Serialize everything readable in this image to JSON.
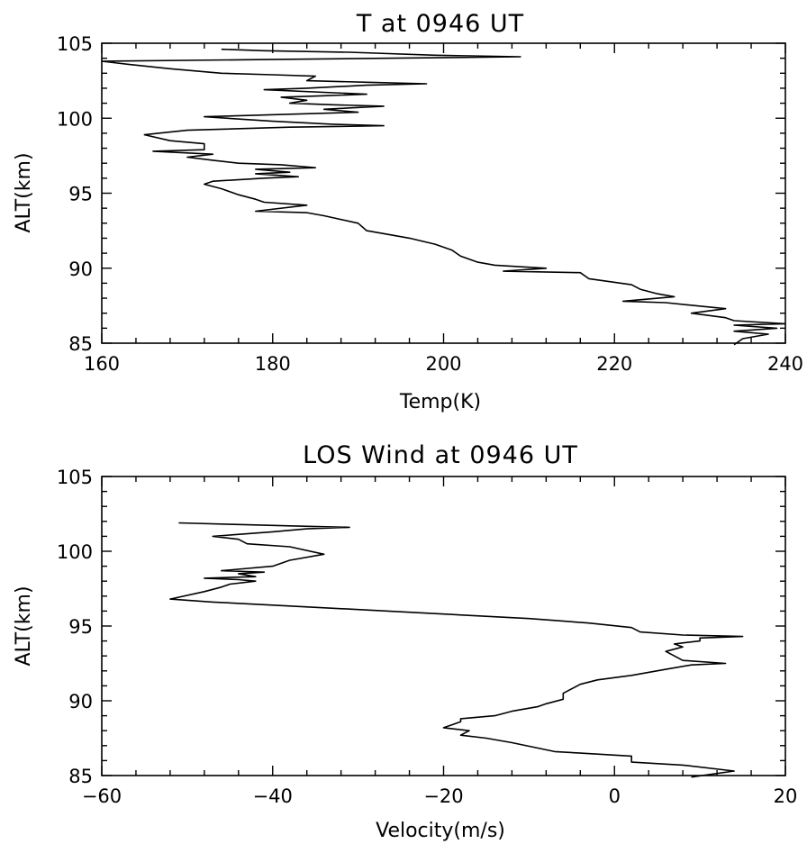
{
  "chart_data": [
    {
      "type": "line",
      "title": "T at 0946 UT",
      "xlabel": "Temp(K)",
      "ylabel": "ALT(km)",
      "xlim": [
        160,
        240
      ],
      "ylim": [
        85,
        105
      ],
      "x_ticks": [
        "160",
        "180",
        "200",
        "220",
        "240"
      ],
      "y_ticks": [
        "85",
        "90",
        "95",
        "100",
        "105"
      ],
      "grid": false,
      "series": [
        {
          "points": [
            [
              234,
              84.9
            ],
            [
              235,
              85.3
            ],
            [
              238,
              85.6
            ],
            [
              234,
              85.8
            ],
            [
              239,
              86.0
            ],
            [
              234,
              86.2
            ],
            [
              240,
              86.3
            ],
            [
              234,
              86.5
            ],
            [
              233,
              86.7
            ],
            [
              229,
              87.0
            ],
            [
              233,
              87.3
            ],
            [
              226,
              87.7
            ],
            [
              221,
              87.8
            ],
            [
              227,
              88.1
            ],
            [
              225,
              88.3
            ],
            [
              223,
              88.6
            ],
            [
              222,
              88.9
            ],
            [
              217,
              89.3
            ],
            [
              216,
              89.7
            ],
            [
              207,
              89.8
            ],
            [
              212,
              90.0
            ],
            [
              206,
              90.2
            ],
            [
              204,
              90.4
            ],
            [
              202,
              90.8
            ],
            [
              201,
              91.2
            ],
            [
              199,
              91.6
            ],
            [
              196,
              92.0
            ],
            [
              194,
              92.2
            ],
            [
              191,
              92.5
            ],
            [
              190,
              93.0
            ],
            [
              186,
              93.5
            ],
            [
              184,
              93.7
            ],
            [
              178,
              93.8
            ],
            [
              184,
              94.2
            ],
            [
              179,
              94.4
            ],
            [
              178,
              94.6
            ],
            [
              176,
              94.9
            ],
            [
              174,
              95.3
            ],
            [
              172,
              95.6
            ],
            [
              173,
              95.8
            ],
            [
              179,
              96.0
            ],
            [
              183,
              96.1
            ],
            [
              178,
              96.3
            ],
            [
              182,
              96.4
            ],
            [
              178,
              96.6
            ],
            [
              185,
              96.7
            ],
            [
              181,
              96.9
            ],
            [
              176,
              97.0
            ],
            [
              173,
              97.2
            ],
            [
              170,
              97.4
            ],
            [
              173,
              97.6
            ],
            [
              166,
              97.8
            ],
            [
              172,
              97.9
            ],
            [
              172,
              98.3
            ],
            [
              168,
              98.5
            ],
            [
              165,
              98.9
            ],
            [
              170,
              99.2
            ],
            [
              182,
              99.4
            ],
            [
              193,
              99.5
            ],
            [
              187,
              99.6
            ],
            [
              180,
              99.8
            ],
            [
              172,
              100.1
            ],
            [
              190,
              100.4
            ],
            [
              186,
              100.6
            ],
            [
              193,
              100.8
            ],
            [
              187,
              100.9
            ],
            [
              182,
              101.0
            ],
            [
              184,
              101.2
            ],
            [
              181,
              101.4
            ],
            [
              186,
              101.5
            ],
            [
              191,
              101.6
            ],
            [
              179,
              101.9
            ],
            [
              184,
              102.0
            ],
            [
              191,
              102.2
            ],
            [
              198,
              102.3
            ],
            [
              191,
              102.4
            ],
            [
              184,
              102.5
            ],
            [
              185,
              102.8
            ],
            [
              180,
              102.9
            ],
            [
              174,
              103.0
            ],
            [
              168,
              103.3
            ],
            [
              163,
              103.6
            ],
            [
              160,
              103.8
            ],
            [
              177,
              103.9
            ],
            [
              193,
              104.0
            ],
            [
              209,
              104.1
            ],
            [
              199,
              104.2
            ],
            [
              189,
              104.4
            ],
            [
              179,
              104.5
            ],
            [
              174,
              104.6
            ]
          ]
        }
      ]
    },
    {
      "type": "line",
      "title": "LOS Wind at 0946  UT",
      "xlabel": "Velocity(m/s)",
      "ylabel": "ALT(km)",
      "xlim": [
        -60,
        20
      ],
      "ylim": [
        85,
        105
      ],
      "x_ticks": [
        "−60",
        "−40",
        "−20",
        "0",
        "20"
      ],
      "y_ticks": [
        "85",
        "90",
        "95",
        "100",
        "105"
      ],
      "grid": false,
      "series": [
        {
          "points": [
            [
              9,
              84.9
            ],
            [
              14,
              85.3
            ],
            [
              8,
              85.7
            ],
            [
              2,
              85.9
            ],
            [
              2,
              86.3
            ],
            [
              -4,
              86.5
            ],
            [
              -7,
              86.6
            ],
            [
              -12,
              87.2
            ],
            [
              -15,
              87.5
            ],
            [
              -18,
              87.7
            ],
            [
              -17,
              88.0
            ],
            [
              -20,
              88.2
            ],
            [
              -19,
              88.4
            ],
            [
              -18,
              88.6
            ],
            [
              -18,
              88.8
            ],
            [
              -14,
              89.0
            ],
            [
              -12,
              89.3
            ],
            [
              -9,
              89.6
            ],
            [
              -8,
              89.8
            ],
            [
              -6,
              90.1
            ],
            [
              -6,
              90.5
            ],
            [
              -5,
              90.8
            ],
            [
              -4,
              91.1
            ],
            [
              -2,
              91.4
            ],
            [
              2,
              91.7
            ],
            [
              6,
              92.1
            ],
            [
              9,
              92.4
            ],
            [
              13,
              92.5
            ],
            [
              8,
              92.7
            ],
            [
              7,
              93.0
            ],
            [
              6,
              93.3
            ],
            [
              8,
              93.6
            ],
            [
              7,
              93.8
            ],
            [
              10,
              94.0
            ],
            [
              10,
              94.2
            ],
            [
              15,
              94.3
            ],
            [
              8,
              94.4
            ],
            [
              3,
              94.6
            ],
            [
              2,
              94.9
            ],
            [
              -3,
              95.2
            ],
            [
              -10,
              95.5
            ],
            [
              -20,
              95.8
            ],
            [
              -30,
              96.1
            ],
            [
              -40,
              96.4
            ],
            [
              -47,
              96.6
            ],
            [
              -52,
              96.8
            ],
            [
              -48,
              97.3
            ],
            [
              -46,
              97.6
            ],
            [
              -45,
              97.8
            ],
            [
              -42,
              98.0
            ],
            [
              -44,
              98.1
            ],
            [
              -48,
              98.2
            ],
            [
              -42,
              98.3
            ],
            [
              -44,
              98.5
            ],
            [
              -41,
              98.6
            ],
            [
              -46,
              98.7
            ],
            [
              -40,
              99.0
            ],
            [
              -38,
              99.4
            ],
            [
              -34,
              99.8
            ],
            [
              -38,
              100.3
            ],
            [
              -43,
              100.5
            ],
            [
              -44,
              100.8
            ],
            [
              -47,
              101.0
            ],
            [
              -40,
              101.3
            ],
            [
              -36,
              101.5
            ],
            [
              -31,
              101.6
            ],
            [
              -38,
              101.7
            ],
            [
              -45,
              101.8
            ],
            [
              -51,
              101.9
            ]
          ]
        }
      ]
    }
  ]
}
